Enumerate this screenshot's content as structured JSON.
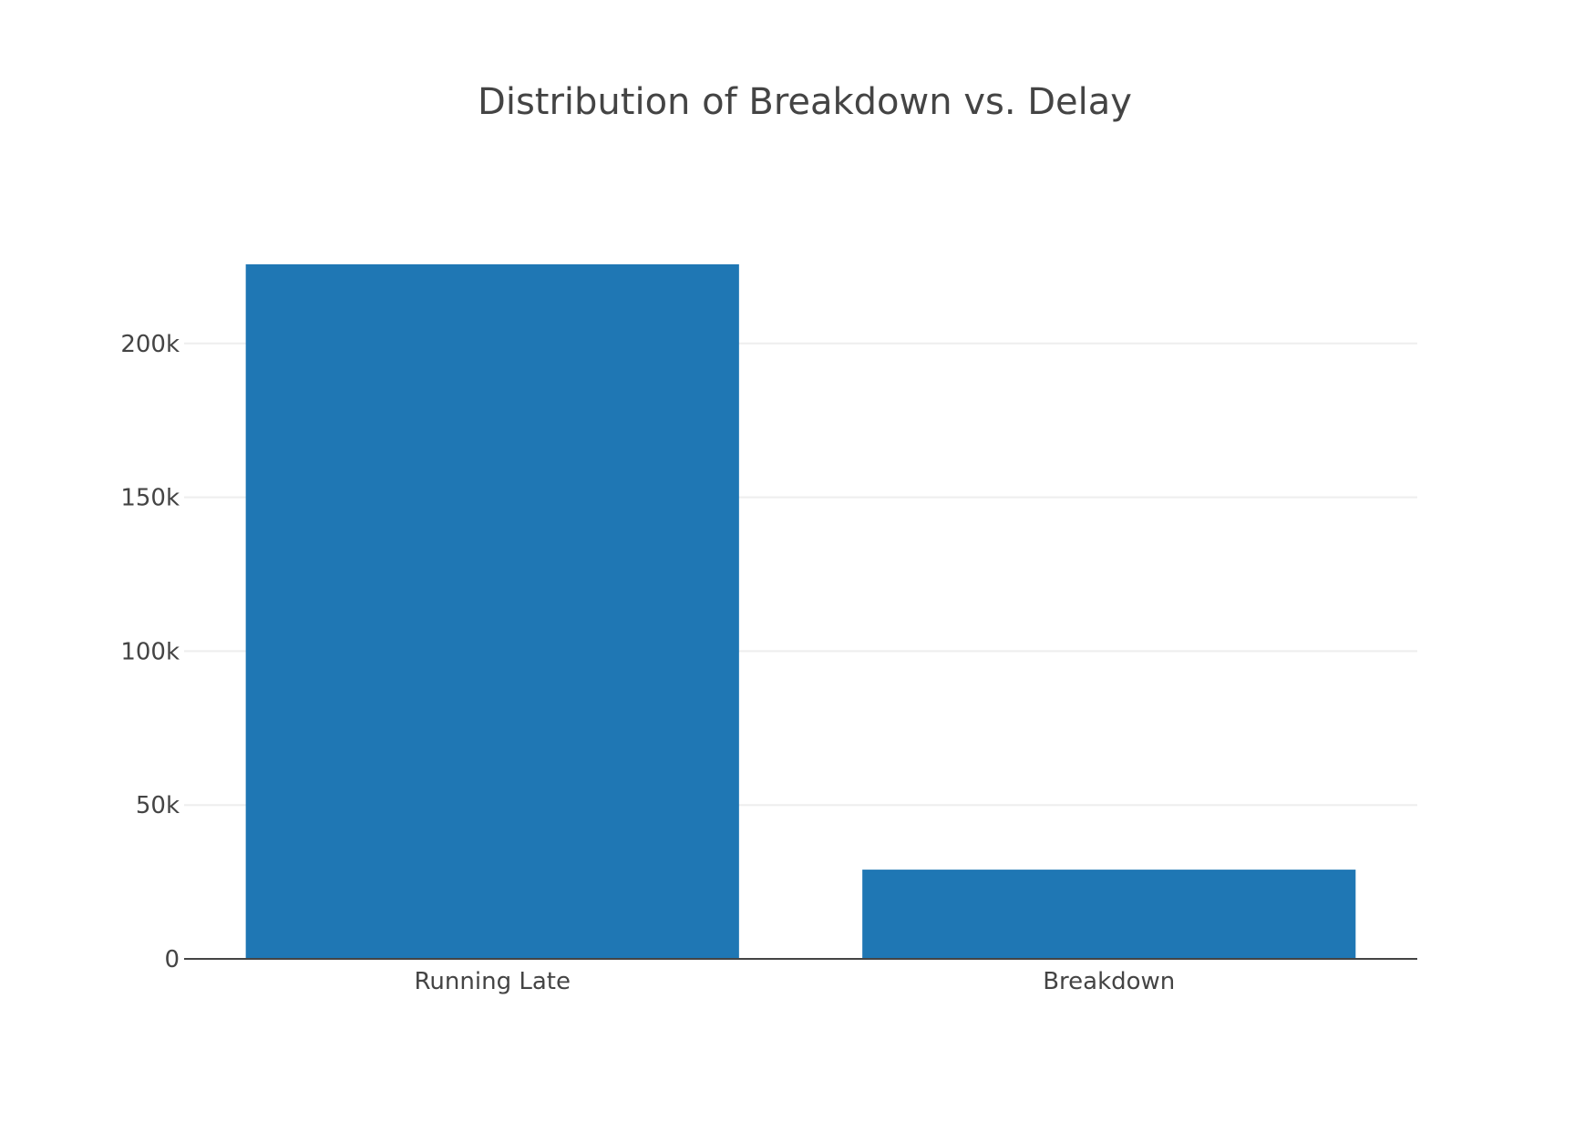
{
  "chart_data": {
    "type": "bar",
    "title": "Distribution of Breakdown vs. Delay",
    "xlabel": "",
    "ylabel": "",
    "categories": [
      "Running Late",
      "Breakdown"
    ],
    "values": [
      225700,
      29000
    ],
    "ylim": [
      0,
      225700
    ],
    "yticks": [
      0,
      50000,
      100000,
      150000,
      200000
    ],
    "ytick_labels": [
      "0",
      "50k",
      "100k",
      "150k",
      "200k"
    ],
    "grid": true,
    "legend": "none",
    "bar_color": "#1f77b4",
    "grid_color": "#eeeeee",
    "axis_color": "#444444"
  }
}
